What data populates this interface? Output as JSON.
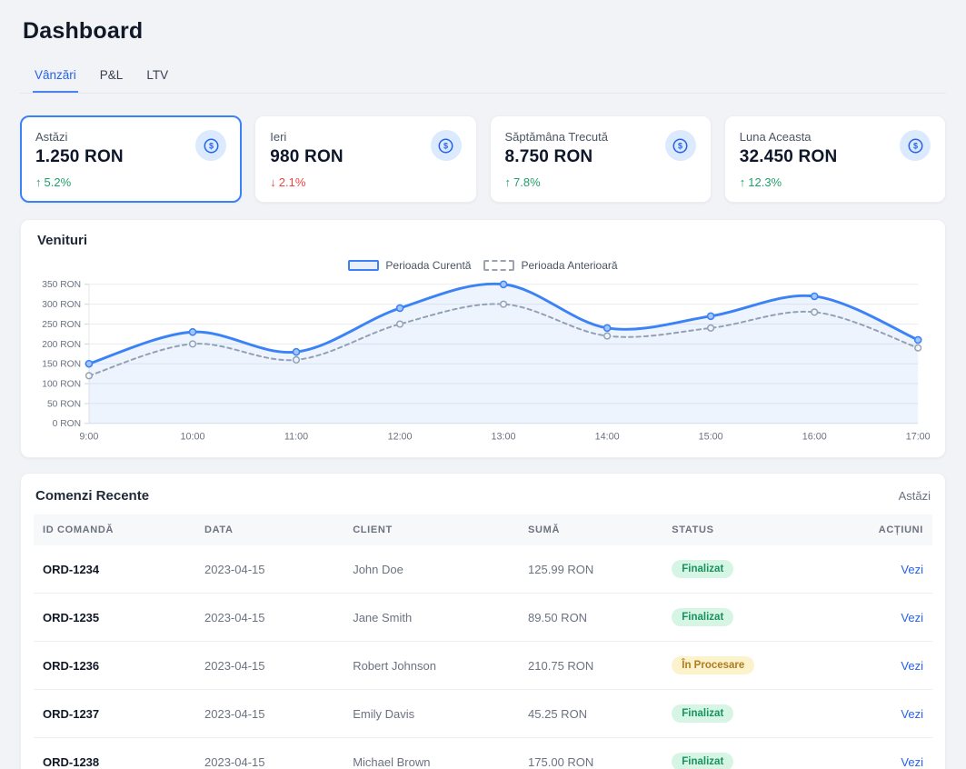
{
  "page": {
    "title": "Dashboard"
  },
  "tabs": [
    {
      "label": "Vânzări",
      "active": true
    },
    {
      "label": "P&L",
      "active": false
    },
    {
      "label": "LTV",
      "active": false
    }
  ],
  "stats": [
    {
      "label": "Astăzi",
      "value": "1.250 RON",
      "delta": "5.2%",
      "direction": "up",
      "selected": true
    },
    {
      "label": "Ieri",
      "value": "980 RON",
      "delta": "2.1%",
      "direction": "down",
      "selected": false
    },
    {
      "label": "Săptămâna Trecută",
      "value": "8.750 RON",
      "delta": "7.8%",
      "direction": "up",
      "selected": false
    },
    {
      "label": "Luna Aceasta",
      "value": "32.450 RON",
      "delta": "12.3%",
      "direction": "up",
      "selected": false
    }
  ],
  "stat_icon": "dollar-circle",
  "chart": {
    "title": "Venituri"
  },
  "chart_data": {
    "type": "line",
    "x": [
      "9:00",
      "10:00",
      "11:00",
      "12:00",
      "13:00",
      "14:00",
      "15:00",
      "16:00",
      "17:00"
    ],
    "series": [
      {
        "name": "Perioada Curentă",
        "values": [
          150,
          230,
          180,
          290,
          350,
          240,
          270,
          320,
          210
        ],
        "color": "#3b82f6",
        "style": "solid",
        "area": true
      },
      {
        "name": "Perioada Anterioară",
        "values": [
          120,
          200,
          160,
          250,
          300,
          220,
          240,
          280,
          190
        ],
        "color": "#9ca3af",
        "style": "dashed",
        "area": false
      }
    ],
    "title": "Venituri",
    "xlabel": "",
    "ylabel": "",
    "ylim": [
      0,
      350
    ],
    "ytick_step": 50,
    "ytick_suffix": " RON",
    "grid": true,
    "legend_position": "top-center"
  },
  "orders": {
    "title": "Comenzi Recente",
    "filter_label": "Astăzi",
    "columns": [
      "ID COMANDĂ",
      "DATA",
      "CLIENT",
      "SUMĂ",
      "STATUS",
      "ACȚIUNI"
    ],
    "rows": [
      {
        "id": "ORD-1234",
        "date": "2023-04-15",
        "client": "John Doe",
        "amount": "125.99 RON",
        "status": "Finalizat",
        "status_type": "success",
        "action": "Vezi"
      },
      {
        "id": "ORD-1235",
        "date": "2023-04-15",
        "client": "Jane Smith",
        "amount": "89.50 RON",
        "status": "Finalizat",
        "status_type": "success",
        "action": "Vezi"
      },
      {
        "id": "ORD-1236",
        "date": "2023-04-15",
        "client": "Robert Johnson",
        "amount": "210.75 RON",
        "status": "În Procesare",
        "status_type": "warning",
        "action": "Vezi"
      },
      {
        "id": "ORD-1237",
        "date": "2023-04-15",
        "client": "Emily Davis",
        "amount": "45.25 RON",
        "status": "Finalizat",
        "status_type": "success",
        "action": "Vezi"
      },
      {
        "id": "ORD-1238",
        "date": "2023-04-15",
        "client": "Michael Brown",
        "amount": "175.00 RON",
        "status": "Finalizat",
        "status_type": "success",
        "action": "Vezi"
      }
    ]
  },
  "colors": {
    "accent": "#2563eb",
    "line_current": "#3b82f6",
    "line_previous": "#9ca3af",
    "up": "#22a06b",
    "down": "#ef4444",
    "success_bg": "#d7f5e4",
    "success_text": "#17935f",
    "warning_bg": "#fcf2cc",
    "warning_text": "#b07c1c",
    "page_bg": "#f1f3f6"
  }
}
